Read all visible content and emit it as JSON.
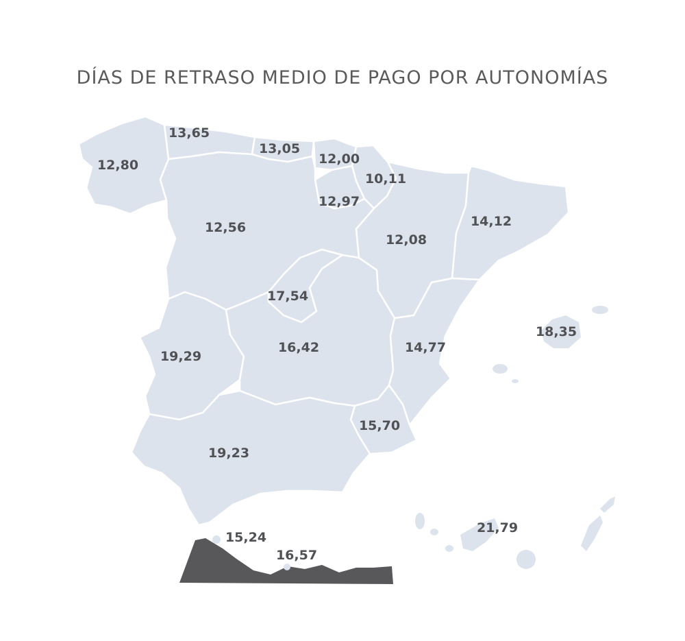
{
  "title": "DÍAS DE RETRASO MEDIO DE PAGO POR AUTONOMÍAS",
  "colors": {
    "region_fill": "#dde3ec",
    "border": "#ffffff",
    "text": "#4f5155",
    "africa": "#58585b"
  },
  "regions": {
    "galicia": {
      "value": "12,80"
    },
    "asturias": {
      "value": "13,65"
    },
    "cantabria": {
      "value": "13,05"
    },
    "pais_vasco": {
      "value": "12,00"
    },
    "navarra": {
      "value": "10,11"
    },
    "la_rioja": {
      "value": "12,97"
    },
    "castilla_y_leon": {
      "value": "12,56"
    },
    "aragon": {
      "value": "12,08"
    },
    "cataluna": {
      "value": "14,12"
    },
    "madrid": {
      "value": "17,54"
    },
    "extremadura": {
      "value": "19,29"
    },
    "castilla_la_mancha": {
      "value": "16,42"
    },
    "comunidad_valenciana": {
      "value": "14,77"
    },
    "murcia": {
      "value": "15,70"
    },
    "andalucia": {
      "value": "19,23"
    },
    "baleares": {
      "value": "18,35"
    },
    "canarias": {
      "value": "21,79"
    },
    "ceuta": {
      "value": "15,24"
    },
    "melilla": {
      "value": "16,57"
    }
  }
}
